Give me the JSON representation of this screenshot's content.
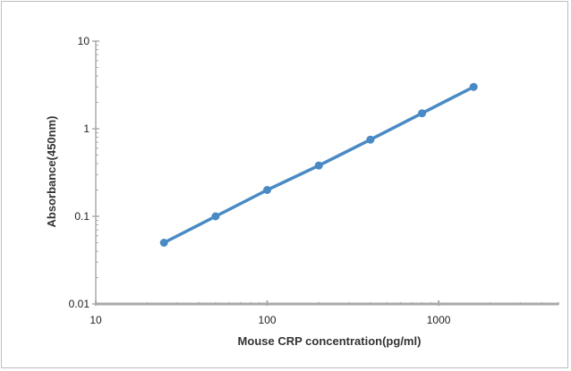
{
  "chart_data": {
    "type": "line",
    "title": "",
    "xlabel": "Mouse CRP  concentration(pg/ml)",
    "ylabel": "Absorbance(450nm)",
    "x_scale": "log",
    "y_scale": "log",
    "xlim": [
      10,
      5000
    ],
    "ylim": [
      0.01,
      10
    ],
    "x_ticks": [
      10,
      100,
      1000
    ],
    "x_tick_labels": [
      "10",
      "100",
      "1000"
    ],
    "y_ticks": [
      0.01,
      0.1,
      1,
      10
    ],
    "y_tick_labels": [
      "0.01",
      "0.1",
      "1",
      "10"
    ],
    "grid": false,
    "legend": "none",
    "series": [
      {
        "x": [
          25,
          50,
          100,
          200,
          400,
          800,
          1600
        ],
        "y": [
          0.05,
          0.1,
          0.2,
          0.38,
          0.75,
          1.5,
          3.0
        ],
        "color": "#4a8ac4",
        "marker": "circle"
      }
    ],
    "axis_color": "#aaaaaa"
  }
}
